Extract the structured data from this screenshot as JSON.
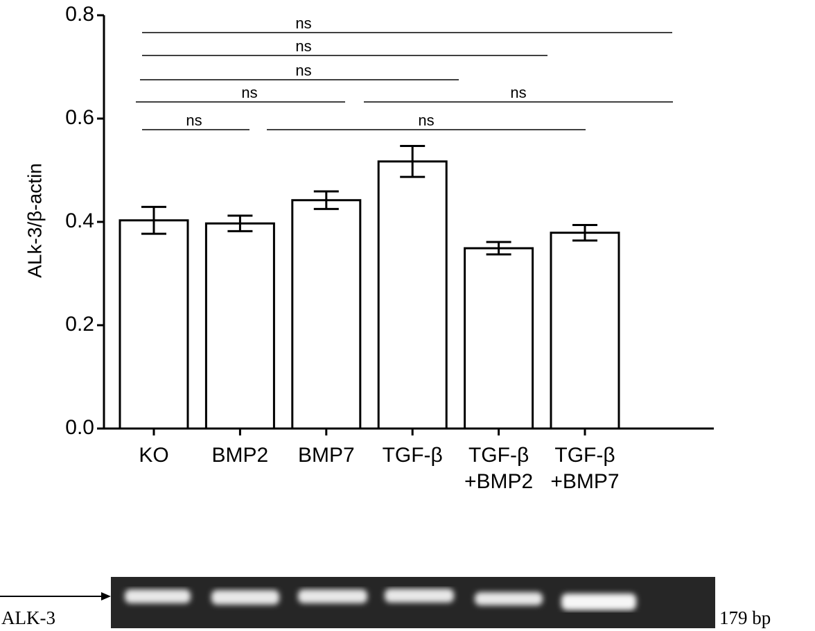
{
  "chart_data": {
    "type": "bar",
    "y_label": "ALk-3/β-actin",
    "categories": [
      "KO",
      "BMP2",
      "BMP7",
      "TGF-β",
      "TGF-β\n+BMP2",
      "TGF-β\n+BMP7"
    ],
    "values": [
      0.403,
      0.397,
      0.442,
      0.517,
      0.349,
      0.379
    ],
    "errors": [
      0.026,
      0.015,
      0.017,
      0.03,
      0.012,
      0.015
    ],
    "color": "#ffffff",
    "ylim": [
      0,
      0.8
    ],
    "yticks": [
      {
        "value": 0,
        "label": "0.0"
      },
      0.2,
      0.4,
      0.6,
      0.8
    ],
    "annotations": [
      "ns",
      "ns",
      "ns",
      "ns",
      "ns",
      "ns",
      "ns"
    ]
  },
  "gel": {
    "label": "ALK-3",
    "size": "179 bp"
  }
}
